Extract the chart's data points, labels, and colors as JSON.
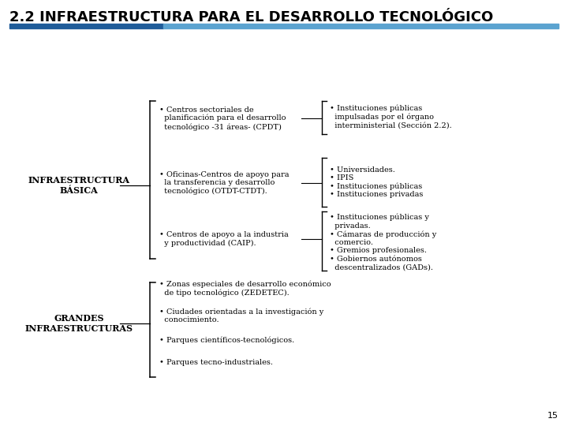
{
  "title": "2.2 INFRAESTRUCTURA PARA EL DESARROLLO TECNOLÓGICO",
  "title_color": "#000000",
  "title_fontsize": 13,
  "title_bar_color1": "#1F5C99",
  "title_bar_color2": "#5BA3D0",
  "bg_color": "#FFFFFF",
  "page_number": "15",
  "section1_label": "INFRAESTRUCTURA\nBÁSICA",
  "section2_label": "GRANDES\nINFRAESTRUCTURAS",
  "mid_item1": "• Centros sectoriales de\n  planificación para el desarrollo\n  tecnológico -31 áreas- (CPDT)",
  "mid_item2": "• Oficinas-Centros de apoyo para\n  la transferencia y desarrollo\n  tecnológico (OTDT-CTDT).",
  "mid_item3": "• Centros de apoyo a la industria\n  y productividad (CAIP).",
  "right_group1": "• Instituciones públicas\n  impulsadas por el órgano\n  interministerial (Sección 2.2).",
  "right_group2": "• Universidades.\n• IPIS\n• Instituciones públicas\n• Instituciones privadas",
  "right_group3": "• Instituciones públicas y\n  privadas.\n• Cámaras de producción y\n  comercio.\n• Gremios profesionales.\n• Gobiernos autónomos\n  descentralizados (GADs).",
  "bot_item1": "• Zonas especiales de desarrollo económico\n  de tipo tecnológico (ZEDETEC).",
  "bot_item2": "• Ciudades orientadas a la investigación y\n  conocimiento.",
  "bot_item3": "• Parques científicos-tecnológicos.",
  "bot_item4": "• Parques tecno-industriales.",
  "text_color": "#000000",
  "bracket_color": "#000000"
}
